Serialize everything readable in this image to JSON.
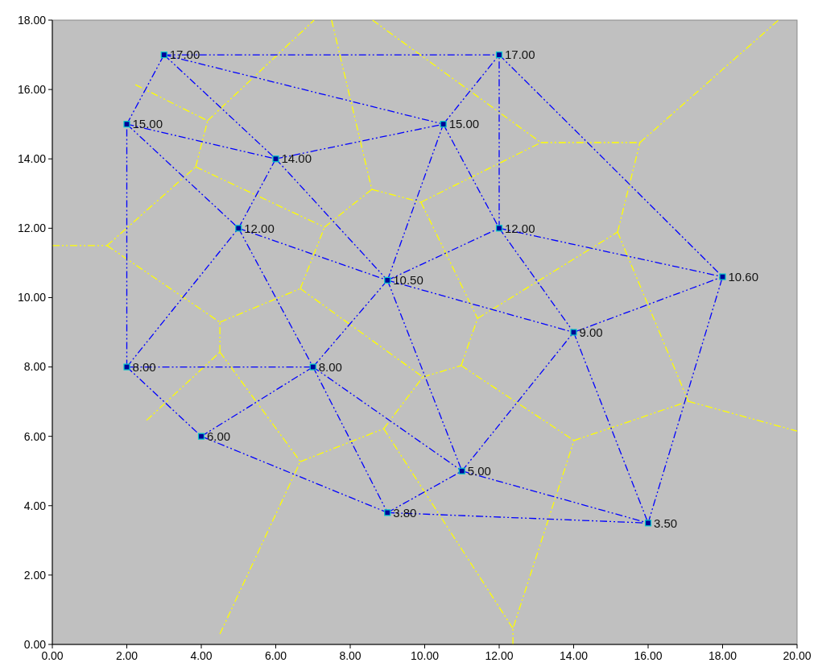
{
  "chart_data": {
    "type": "scatter",
    "xlim": [
      0,
      20
    ],
    "ylim": [
      0,
      18
    ],
    "xticks": [
      {
        "value": 0,
        "label": "0.00"
      },
      {
        "value": 2,
        "label": "2.00"
      },
      {
        "value": 4,
        "label": "4.00"
      },
      {
        "value": 6,
        "label": "6.00"
      },
      {
        "value": 8,
        "label": "8.00"
      },
      {
        "value": 10,
        "label": "10.00"
      },
      {
        "value": 12,
        "label": "12.00"
      },
      {
        "value": 14,
        "label": "14.00"
      },
      {
        "value": 16,
        "label": "16.00"
      },
      {
        "value": 18,
        "label": "18.00"
      },
      {
        "value": 20,
        "label": "20.00"
      }
    ],
    "yticks": [
      {
        "value": 0,
        "label": "0.00"
      },
      {
        "value": 2,
        "label": "2.00"
      },
      {
        "value": 4,
        "label": "4.00"
      },
      {
        "value": 6,
        "label": "6.00"
      },
      {
        "value": 8,
        "label": "8.00"
      },
      {
        "value": 10,
        "label": "10.00"
      },
      {
        "value": 12,
        "label": "12.00"
      },
      {
        "value": 14,
        "label": "14.00"
      },
      {
        "value": 16,
        "label": "16.00"
      },
      {
        "value": 18,
        "label": "18.00"
      }
    ],
    "grid": false,
    "line_style": "dashed",
    "marker": "none",
    "series": [
      {
        "type": "line",
        "color": "#ffff00",
        "x": [
          0,
          1.47
        ],
        "values": [
          11.5,
          11.5
        ]
      },
      {
        "type": "line",
        "color": "#ffff00",
        "x": [
          1.47,
          3.85
        ],
        "values": [
          11.5,
          13.77
        ]
      },
      {
        "type": "line",
        "color": "#ffff00",
        "x": [
          3.85,
          4.17
        ],
        "values": [
          13.77,
          15.1
        ]
      },
      {
        "type": "line",
        "color": "#ffff00",
        "x": [
          2.23,
          4.17
        ],
        "values": [
          16.14,
          15.1
        ]
      },
      {
        "type": "line",
        "color": "#ffff00",
        "x": [
          4.17,
          7.03
        ],
        "values": [
          15.1,
          18
        ]
      },
      {
        "type": "line",
        "color": "#ffff00",
        "x": [
          3.85,
          7.31
        ],
        "values": [
          13.77,
          12.03
        ]
      },
      {
        "type": "line",
        "color": "#ffff00",
        "x": [
          7.31,
          8.58
        ],
        "values": [
          12.03,
          13.12
        ]
      },
      {
        "type": "line",
        "color": "#ffff00",
        "x": [
          7.5,
          8.58
        ],
        "values": [
          18,
          13.12
        ]
      },
      {
        "type": "line",
        "color": "#ffff00",
        "x": [
          8.58,
          9.9
        ],
        "values": [
          13.12,
          12.75
        ]
      },
      {
        "type": "line",
        "color": "#ffff00",
        "x": [
          9.9,
          13.12
        ],
        "values": [
          12.75,
          14.47
        ]
      },
      {
        "type": "line",
        "color": "#ffff00",
        "x": [
          8.6,
          13.12
        ],
        "values": [
          18,
          14.47
        ]
      },
      {
        "type": "line",
        "color": "#ffff00",
        "x": [
          13.12,
          15.78
        ],
        "values": [
          14.47,
          14.47
        ]
      },
      {
        "type": "line",
        "color": "#ffff00",
        "x": [
          15.78,
          19.5
        ],
        "values": [
          14.47,
          18
        ]
      },
      {
        "type": "line",
        "color": "#ffff00",
        "x": [
          15.18,
          15.78
        ],
        "values": [
          11.89,
          14.47
        ]
      },
      {
        "type": "line",
        "color": "#ffff00",
        "x": [
          11.42,
          15.18
        ],
        "values": [
          9.4,
          11.89
        ]
      },
      {
        "type": "line",
        "color": "#ffff00",
        "x": [
          9.9,
          11.42
        ],
        "values": [
          12.75,
          9.4
        ]
      },
      {
        "type": "line",
        "color": "#ffff00",
        "x": [
          15.18,
          17.08
        ],
        "values": [
          11.89,
          7.01
        ]
      },
      {
        "type": "line",
        "color": "#ffff00",
        "x": [
          17.08,
          20
        ],
        "values": [
          7.01,
          6.15
        ]
      },
      {
        "type": "line",
        "color": "#ffff00",
        "x": [
          14.01,
          17.08
        ],
        "values": [
          5.88,
          7.01
        ]
      },
      {
        "type": "line",
        "color": "#ffff00",
        "x": [
          12.37,
          12.37,
          14.01
        ],
        "values": [
          0,
          0.46,
          5.88
        ]
      },
      {
        "type": "line",
        "color": "#ffff00",
        "x": [
          10.98,
          14.01
        ],
        "values": [
          8.04,
          5.88
        ]
      },
      {
        "type": "line",
        "color": "#ffff00",
        "x": [
          10.98,
          11.42
        ],
        "values": [
          8.04,
          9.4
        ]
      },
      {
        "type": "line",
        "color": "#ffff00",
        "x": [
          9.95,
          10.98
        ],
        "values": [
          7.71,
          8.04
        ]
      },
      {
        "type": "line",
        "color": "#ffff00",
        "x": [
          8.9,
          9.95
        ],
        "values": [
          6.22,
          7.71
        ]
      },
      {
        "type": "line",
        "color": "#ffff00",
        "x": [
          8.9,
          12.37
        ],
        "values": [
          6.22,
          0.46
        ]
      },
      {
        "type": "line",
        "color": "#ffff00",
        "x": [
          6.66,
          8.9
        ],
        "values": [
          5.27,
          6.22
        ]
      },
      {
        "type": "line",
        "color": "#ffff00",
        "x": [
          6.66,
          9.95
        ],
        "values": [
          10.26,
          7.71
        ]
      },
      {
        "type": "line",
        "color": "#ffff00",
        "x": [
          6.66,
          7.31
        ],
        "values": [
          10.26,
          12.03
        ]
      },
      {
        "type": "line",
        "color": "#ffff00",
        "x": [
          4.5,
          6.66
        ],
        "values": [
          9.29,
          10.26
        ]
      },
      {
        "type": "line",
        "color": "#ffff00",
        "x": [
          1.47,
          4.5
        ],
        "values": [
          11.5,
          9.29
        ]
      },
      {
        "type": "line",
        "color": "#ffff00",
        "x": [
          4.5,
          4.5
        ],
        "values": [
          8.43,
          9.29
        ]
      },
      {
        "type": "line",
        "color": "#ffff00",
        "x": [
          2.53,
          4.5
        ],
        "values": [
          6.46,
          8.43
        ]
      },
      {
        "type": "line",
        "color": "#ffff00",
        "x": [
          4.5,
          6.66
        ],
        "values": [
          8.43,
          5.27
        ]
      },
      {
        "type": "line",
        "color": "#ffff00",
        "x": [
          4.5,
          6.66
        ],
        "values": [
          0.3,
          5.27
        ]
      },
      {
        "type": "line",
        "color": "#0000ff",
        "x": [
          3,
          12
        ],
        "values": [
          17,
          17
        ]
      },
      {
        "type": "line",
        "color": "#0000ff",
        "x": [
          2,
          3
        ],
        "values": [
          15,
          17
        ]
      },
      {
        "type": "line",
        "color": "#0000ff",
        "x": [
          3,
          10.5
        ],
        "values": [
          17,
          15
        ]
      },
      {
        "type": "line",
        "color": "#0000ff",
        "x": [
          3,
          6
        ],
        "values": [
          17,
          14
        ]
      },
      {
        "type": "line",
        "color": "#0000ff",
        "x": [
          2,
          6
        ],
        "values": [
          15,
          14
        ]
      },
      {
        "type": "line",
        "color": "#0000ff",
        "x": [
          2,
          5
        ],
        "values": [
          15,
          12
        ]
      },
      {
        "type": "line",
        "color": "#0000ff",
        "x": [
          2,
          2
        ],
        "values": [
          8,
          15
        ]
      },
      {
        "type": "line",
        "color": "#0000ff",
        "x": [
          6,
          10.5
        ],
        "values": [
          14,
          15
        ]
      },
      {
        "type": "line",
        "color": "#0000ff",
        "x": [
          5,
          6
        ],
        "values": [
          12,
          14
        ]
      },
      {
        "type": "line",
        "color": "#0000ff",
        "x": [
          6,
          9
        ],
        "values": [
          14,
          10.5
        ]
      },
      {
        "type": "line",
        "color": "#0000ff",
        "x": [
          5,
          9
        ],
        "values": [
          12,
          10.5
        ]
      },
      {
        "type": "line",
        "color": "#0000ff",
        "x": [
          2,
          5
        ],
        "values": [
          8,
          12
        ]
      },
      {
        "type": "line",
        "color": "#0000ff",
        "x": [
          5,
          7
        ],
        "values": [
          12,
          8
        ]
      },
      {
        "type": "line",
        "color": "#0000ff",
        "x": [
          10.5,
          12
        ],
        "values": [
          15,
          17
        ]
      },
      {
        "type": "line",
        "color": "#0000ff",
        "x": [
          9,
          10.5
        ],
        "values": [
          10.5,
          15
        ]
      },
      {
        "type": "line",
        "color": "#0000ff",
        "x": [
          10.5,
          12
        ],
        "values": [
          15,
          12
        ]
      },
      {
        "type": "line",
        "color": "#0000ff",
        "x": [
          12,
          12
        ],
        "values": [
          12,
          17
        ]
      },
      {
        "type": "line",
        "color": "#0000ff",
        "x": [
          12,
          18
        ],
        "values": [
          17,
          10.6
        ]
      },
      {
        "type": "line",
        "color": "#0000ff",
        "x": [
          9,
          12
        ],
        "values": [
          10.5,
          12
        ]
      },
      {
        "type": "line",
        "color": "#0000ff",
        "x": [
          12,
          18
        ],
        "values": [
          12,
          10.6
        ]
      },
      {
        "type": "line",
        "color": "#0000ff",
        "x": [
          12,
          14
        ],
        "values": [
          12,
          9
        ]
      },
      {
        "type": "line",
        "color": "#0000ff",
        "x": [
          14,
          18
        ],
        "values": [
          9,
          10.6
        ]
      },
      {
        "type": "line",
        "color": "#0000ff",
        "x": [
          16,
          18
        ],
        "values": [
          3.5,
          10.6
        ]
      },
      {
        "type": "line",
        "color": "#0000ff",
        "x": [
          9,
          14
        ],
        "values": [
          10.5,
          9
        ]
      },
      {
        "type": "line",
        "color": "#0000ff",
        "x": [
          7,
          9
        ],
        "values": [
          8,
          10.5
        ]
      },
      {
        "type": "line",
        "color": "#0000ff",
        "x": [
          9,
          11
        ],
        "values": [
          10.5,
          5
        ]
      },
      {
        "type": "line",
        "color": "#0000ff",
        "x": [
          11,
          14
        ],
        "values": [
          5,
          9
        ]
      },
      {
        "type": "line",
        "color": "#0000ff",
        "x": [
          14,
          16
        ],
        "values": [
          9,
          3.5
        ]
      },
      {
        "type": "line",
        "color": "#0000ff",
        "x": [
          2,
          7
        ],
        "values": [
          8,
          8
        ]
      },
      {
        "type": "line",
        "color": "#0000ff",
        "x": [
          2,
          4
        ],
        "values": [
          8,
          6
        ]
      },
      {
        "type": "line",
        "color": "#0000ff",
        "x": [
          4,
          7
        ],
        "values": [
          6,
          8
        ]
      },
      {
        "type": "line",
        "color": "#0000ff",
        "x": [
          7,
          11
        ],
        "values": [
          8,
          5
        ]
      },
      {
        "type": "line",
        "color": "#0000ff",
        "x": [
          7,
          9
        ],
        "values": [
          8,
          3.8
        ]
      },
      {
        "type": "line",
        "color": "#0000ff",
        "x": [
          4,
          9
        ],
        "values": [
          6,
          3.8
        ]
      },
      {
        "type": "line",
        "color": "#0000ff",
        "x": [
          9,
          11
        ],
        "values": [
          3.8,
          5
        ]
      },
      {
        "type": "line",
        "color": "#0000ff",
        "x": [
          11,
          16
        ],
        "values": [
          5,
          3.5
        ]
      },
      {
        "type": "line",
        "color": "#0000ff",
        "x": [
          9,
          16
        ],
        "values": [
          3.8,
          3.5
        ]
      },
      {
        "type": "scatter",
        "color": "#000099",
        "marker": "square",
        "x": [
          3,
          12,
          2,
          10.5,
          6,
          5,
          12,
          9,
          18,
          14,
          2,
          7,
          4,
          11,
          9,
          16
        ],
        "values": [
          17,
          17,
          15,
          15,
          14,
          12,
          12,
          10.5,
          10.6,
          9,
          8,
          8,
          6,
          5,
          3.8,
          3.5
        ],
        "value_labels": [
          "17.00",
          "17.00",
          "15.00",
          "15.00",
          "14.00",
          "12.00",
          "12.00",
          "10.50",
          "10.60",
          "9.00",
          "8.00",
          "8.00",
          "6.00",
          "5.00",
          "3.80",
          "3.50"
        ]
      }
    ]
  }
}
